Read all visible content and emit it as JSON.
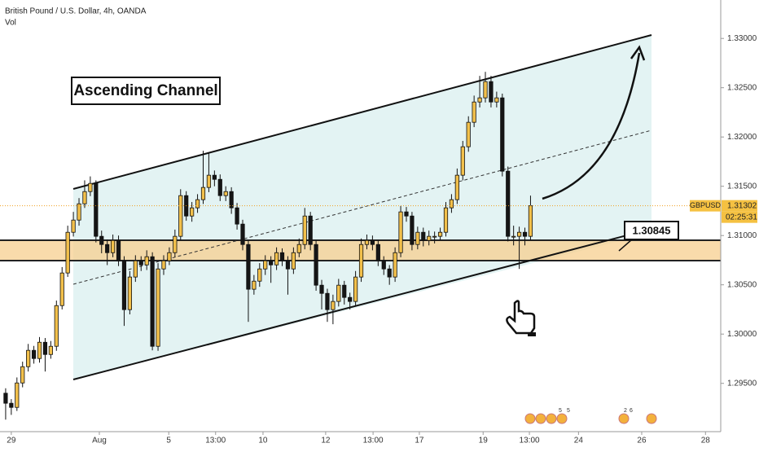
{
  "chart_data": {
    "type": "candlestick",
    "title": "British Pound / U.S. Dollar, 4h, OANDA",
    "subtitle": "Vol",
    "annotation": "Ascending Channel",
    "level_label": "1.30845",
    "symbol": "GBPUSD",
    "countdown": "02:25:31",
    "last_price": 1.31302,
    "event_counts": [
      5,
      5,
      2,
      6
    ],
    "up_color": "#f2c04b",
    "down_color": "#151515",
    "xlim": [
      -1,
      126.7
    ],
    "ylim": [
      1.2901,
      1.3339
    ],
    "xticks": [
      {
        "value": 1,
        "label": "29"
      },
      {
        "value": 16.6,
        "label": "Aug"
      },
      {
        "value": 28.9,
        "label": "5"
      },
      {
        "value": 37.2,
        "label": "13:00"
      },
      {
        "value": 45.6,
        "label": "10"
      },
      {
        "value": 56.7,
        "label": "12"
      },
      {
        "value": 65.1,
        "label": "13:00"
      },
      {
        "value": 73.3,
        "label": "17"
      },
      {
        "value": 84.6,
        "label": "19"
      },
      {
        "value": 92.8,
        "label": "13:00"
      },
      {
        "value": 101.5,
        "label": "24"
      },
      {
        "value": 112.7,
        "label": "26"
      },
      {
        "value": 124,
        "label": "28"
      }
    ],
    "yticks": [
      {
        "value": 1.295,
        "label": "1.29500"
      },
      {
        "value": 1.3,
        "label": "1.30000"
      },
      {
        "value": 1.305,
        "label": "1.30500"
      },
      {
        "value": 1.31,
        "label": "1.31000"
      },
      {
        "value": 1.315,
        "label": "1.31500"
      },
      {
        "value": 1.32,
        "label": "1.32000"
      },
      {
        "value": 1.325,
        "label": "1.32500"
      },
      {
        "value": 1.33,
        "label": "1.33000"
      }
    ],
    "open": [
      1.294,
      1.29298,
      1.29256,
      1.29504,
      1.29669,
      1.29835,
      1.29752,
      1.29917,
      1.29793,
      1.29876,
      1.30289,
      1.3062,
      1.31033,
      1.31157,
      1.31322,
      1.31446,
      1.31529,
      1.30992,
      1.30909,
      1.30826,
      1.3095,
      1.30744,
      1.30248,
      1.30579,
      1.30744,
      1.30702,
      1.30785,
      1.29876,
      1.30661,
      1.30744,
      1.30826,
      1.30992,
      1.31405,
      1.31198,
      1.31281,
      1.31364,
      1.31488,
      1.31612,
      1.3157,
      1.31405,
      1.31446,
      1.31281,
      1.31116,
      1.30909,
      1.30455,
      1.30537,
      1.30661,
      1.30744,
      1.30702,
      1.30826,
      1.30744,
      1.30661,
      1.30826,
      1.30909,
      1.31198,
      1.30909,
      1.30496,
      1.30413,
      1.30248,
      1.30331,
      1.30496,
      1.30372,
      1.30331,
      1.30579,
      1.30909,
      1.3095,
      1.30909,
      1.30744,
      1.30661,
      1.30579,
      1.30826,
      1.3124,
      1.31198,
      1.30909,
      1.31033,
      1.3095,
      1.30992,
      1.30992,
      1.31033,
      1.31281,
      1.31364,
      1.31612,
      1.31901,
      1.32149,
      1.32355,
      1.32397,
      1.32562,
      1.32355,
      1.32397,
      1.31653,
      1.30992,
      1.30992,
      1.31033,
      1.30992
    ],
    "high": [
      1.2945,
      1.2934,
      1.2956,
      1.2972,
      1.299,
      1.2988,
      1.2997,
      1.2996,
      1.2993,
      1.3034,
      1.3068,
      1.311,
      1.3124,
      1.3138,
      1.3156,
      1.316,
      1.3156,
      1.3105,
      1.3096,
      1.3101,
      1.31,
      1.3079,
      1.3064,
      1.308,
      1.3079,
      1.3085,
      1.3083,
      1.3072,
      1.308,
      1.3088,
      1.3106,
      1.3147,
      1.3145,
      1.3134,
      1.3142,
      1.3186,
      1.3184,
      1.3166,
      1.3162,
      1.315,
      1.3149,
      1.3133,
      1.3116,
      1.3095,
      1.306,
      1.3072,
      1.308,
      1.3079,
      1.3088,
      1.3087,
      1.3079,
      1.3088,
      1.3097,
      1.3128,
      1.3124,
      1.3095,
      1.3055,
      1.3046,
      1.304,
      1.3056,
      1.3054,
      1.3042,
      1.3064,
      1.3097,
      1.3101,
      1.31,
      1.3095,
      1.3079,
      1.307,
      1.3088,
      1.313,
      1.3129,
      1.3124,
      1.3109,
      1.3108,
      1.3105,
      1.3104,
      1.3108,
      1.3134,
      1.3142,
      1.3168,
      1.3196,
      1.3221,
      1.3242,
      1.3262,
      1.32661,
      1.3262,
      1.3246,
      1.3244,
      1.317,
      1.311,
      1.3109,
      1.3108,
      1.31405
    ],
    "low": [
      1.29132,
      1.2918,
      1.2922,
      1.2946,
      1.2962,
      1.297,
      1.2971,
      1.2962,
      1.2975,
      1.2983,
      1.3025,
      1.3058,
      1.3099,
      1.311,
      1.3128,
      1.314,
      1.3093,
      1.3082,
      1.307,
      1.3078,
      1.3069,
      1.30083,
      1.302,
      1.3053,
      1.3064,
      1.3065,
      1.29835,
      1.2983,
      1.306,
      1.307,
      1.3078,
      1.3095,
      1.3115,
      1.3114,
      1.3123,
      1.3132,
      1.3144,
      1.315,
      1.3135,
      1.3135,
      1.3122,
      1.3106,
      1.3085,
      1.30124,
      1.304,
      1.3048,
      1.306,
      1.3052,
      1.3065,
      1.3069,
      1.304,
      1.3061,
      1.3078,
      1.3086,
      1.3085,
      1.3044,
      1.3025,
      1.30124,
      1.301,
      1.3028,
      1.303,
      1.3025,
      1.3028,
      1.3053,
      1.3086,
      1.3085,
      1.3069,
      1.306,
      1.305,
      1.3053,
      1.3078,
      1.3114,
      1.3085,
      1.3086,
      1.3089,
      1.309,
      1.3092,
      1.3095,
      1.3099,
      1.3123,
      1.3132,
      1.3156,
      1.3185,
      1.321,
      1.323,
      1.3235,
      1.323,
      1.323,
      1.316,
      1.3094,
      1.309,
      1.30661,
      1.309,
      1.3095
    ],
    "close": [
      1.29298,
      1.29256,
      1.29504,
      1.29669,
      1.29835,
      1.29752,
      1.29917,
      1.29793,
      1.29876,
      1.30289,
      1.3062,
      1.31033,
      1.31157,
      1.31322,
      1.31446,
      1.31529,
      1.30992,
      1.30909,
      1.30826,
      1.3095,
      1.30744,
      1.30248,
      1.30579,
      1.30744,
      1.30702,
      1.30785,
      1.29876,
      1.30661,
      1.30744,
      1.30826,
      1.30992,
      1.31405,
      1.31198,
      1.31281,
      1.31364,
      1.31488,
      1.31612,
      1.3157,
      1.31405,
      1.31446,
      1.31281,
      1.31116,
      1.30909,
      1.30455,
      1.30537,
      1.30661,
      1.30744,
      1.30702,
      1.30826,
      1.30744,
      1.30661,
      1.30826,
      1.30909,
      1.31198,
      1.30909,
      1.30496,
      1.30413,
      1.30248,
      1.30331,
      1.30496,
      1.30372,
      1.30331,
      1.30579,
      1.30909,
      1.3095,
      1.30909,
      1.30744,
      1.30661,
      1.30579,
      1.30826,
      1.3124,
      1.31198,
      1.30909,
      1.31033,
      1.3095,
      1.30992,
      1.30992,
      1.31033,
      1.31281,
      1.31364,
      1.31612,
      1.31901,
      1.32149,
      1.32355,
      1.32397,
      1.32562,
      1.32355,
      1.32397,
      1.31653,
      1.30992,
      1.30992,
      1.31033,
      1.30992,
      1.31302
    ]
  }
}
